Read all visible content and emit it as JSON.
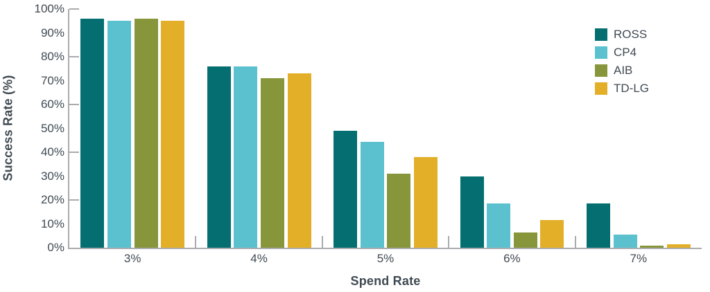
{
  "chart_data": {
    "type": "bar",
    "title": "",
    "xlabel": "Spend Rate",
    "ylabel": "Success Rate (%)",
    "categories": [
      "3%",
      "4%",
      "5%",
      "6%",
      "7%"
    ],
    "series": [
      {
        "name": "ROSS",
        "color": "#046e70",
        "values": [
          96,
          76,
          49,
          30,
          18.5
        ]
      },
      {
        "name": "CP4",
        "color": "#5cc1cf",
        "values": [
          95,
          76,
          44.5,
          18.5,
          5.5
        ]
      },
      {
        "name": "AIB",
        "color": "#87963a",
        "values": [
          96,
          71,
          31,
          6.5,
          1
        ]
      },
      {
        "name": "TD-LG",
        "color": "#e3af29",
        "values": [
          95,
          73,
          38,
          11.5,
          1.5
        ]
      }
    ],
    "y_axis": {
      "min": 0,
      "max": 100,
      "tick_step": 10,
      "tick_labels": [
        "0%",
        "10%",
        "20%",
        "30%",
        "40%",
        "50%",
        "60%",
        "70%",
        "80%",
        "90%",
        "100%"
      ],
      "inner_tick_values": [
        20,
        40,
        60,
        80,
        100
      ]
    },
    "legend_position": "top-right",
    "grid": false
  },
  "colors": {
    "axis_line": "#a9abae",
    "text": "#3f4a52",
    "background": "#ffffff"
  }
}
